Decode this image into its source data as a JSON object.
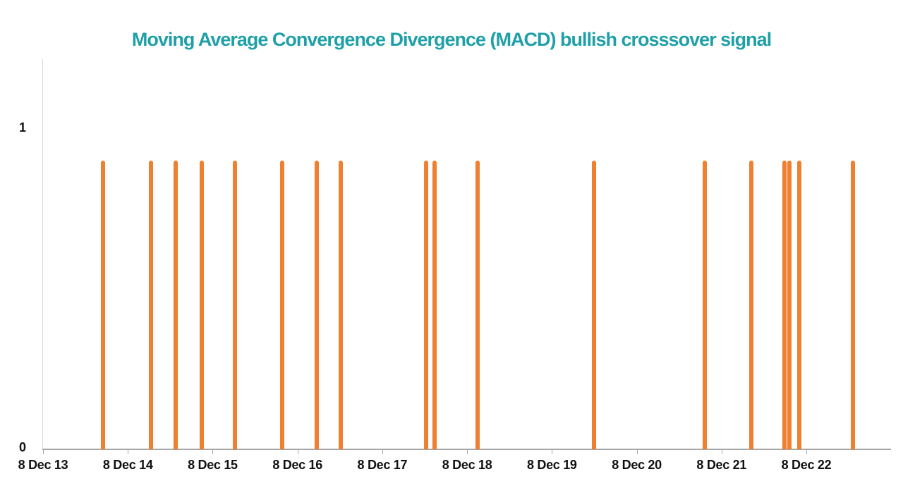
{
  "chart_data": {
    "type": "bar",
    "title": "Moving Average Convergence Divergence (MACD) bullish crosssover signal",
    "title_color": "#1fa0a8",
    "bar_color": "#ee8030",
    "axis_color": "#a6a6a6",
    "x_tick_labels": [
      "8 Dec 13",
      "8 Dec 14",
      "8 Dec 15",
      "8 Dec 16",
      "8 Dec 17",
      "8 Dec 18",
      "8 Dec 19",
      "8 Dec 20",
      "8 Dec 21",
      "8 Dec 22"
    ],
    "y_ticks": [
      {
        "label": "0",
        "value": 0
      },
      {
        "label": "1",
        "value": 1
      }
    ],
    "x_unit": "years after first tick (8 Dec 13)",
    "xlim_years": [
      0,
      10
    ],
    "ylim": [
      0,
      1.22
    ],
    "grid": "off",
    "legend": "none",
    "bar_value": 0.9,
    "events_x_years": [
      0.71,
      1.27,
      1.56,
      1.87,
      2.26,
      2.82,
      3.23,
      3.51,
      4.52,
      4.62,
      5.12,
      6.5,
      7.8,
      8.35,
      8.74,
      8.8,
      8.92,
      9.55
    ]
  }
}
